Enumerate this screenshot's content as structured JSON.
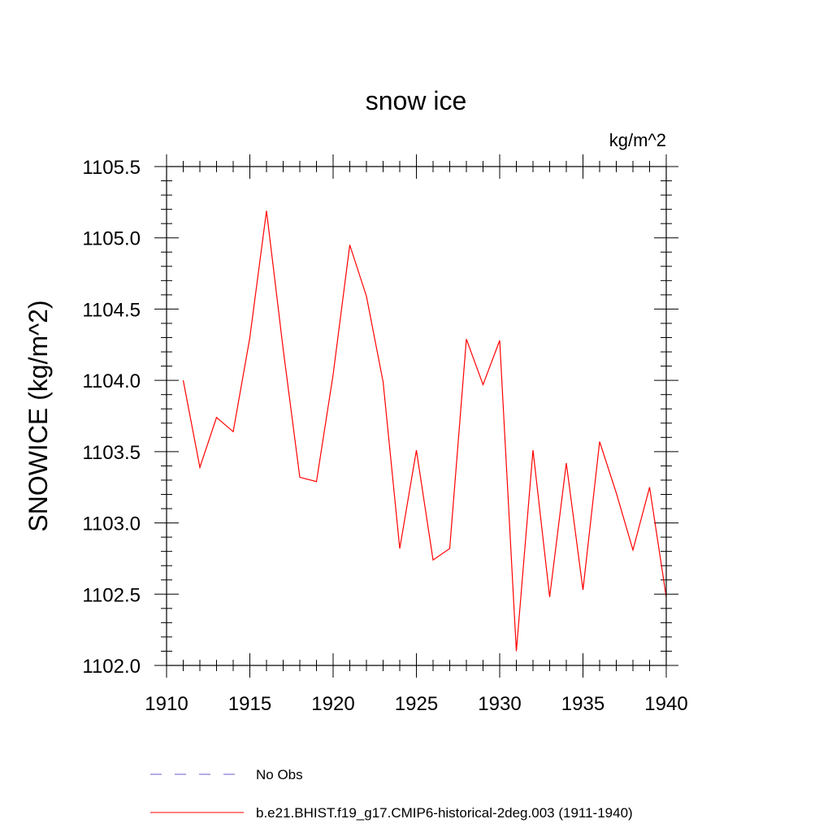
{
  "chart_data": {
    "type": "line",
    "title": "snow ice",
    "units_label": "kg/m^2",
    "ylabel": "SNOWICE  (kg/m^2)",
    "xlabel": "",
    "xlim": [
      1910,
      1940
    ],
    "ylim": [
      1102.0,
      1105.5
    ],
    "x_ticks": [
      1910,
      1915,
      1920,
      1925,
      1930,
      1935,
      1940
    ],
    "x_tick_labels": [
      "1910",
      "1915",
      "1920",
      "1925",
      "1930",
      "1935",
      "1940"
    ],
    "y_ticks": [
      1102.0,
      1102.5,
      1103.0,
      1103.5,
      1104.0,
      1104.5,
      1105.0,
      1105.5
    ],
    "y_tick_labels": [
      "1102.0",
      "1102.5",
      "1103.0",
      "1103.5",
      "1104.0",
      "1104.5",
      "1105.0",
      "1105.5"
    ],
    "grid": false,
    "legend_position": "bottom",
    "legend": [
      {
        "label": "No Obs",
        "color": "#6a5acd",
        "style": "dashed"
      },
      {
        "label": "b.e21.BHIST.f19_g17.CMIP6-historical-2deg.003 (1911-1940)",
        "color": "#ff0000",
        "style": "solid"
      }
    ],
    "series": [
      {
        "name": "b.e21.BHIST.f19_g17.CMIP6-historical-2deg.003 (1911-1940)",
        "color": "#ff0000",
        "x": [
          1911,
          1912,
          1913,
          1914,
          1915,
          1916,
          1917,
          1918,
          1919,
          1920,
          1921,
          1922,
          1923,
          1924,
          1925,
          1926,
          1927,
          1928,
          1929,
          1930,
          1931,
          1932,
          1933,
          1934,
          1935,
          1936,
          1937,
          1938,
          1939,
          1940
        ],
        "values": [
          1104.0,
          1103.39,
          1103.74,
          1103.64,
          1104.3,
          1105.19,
          1104.22,
          1103.32,
          1103.29,
          1104.04,
          1104.95,
          1104.59,
          1103.99,
          1102.82,
          1103.51,
          1102.74,
          1102.82,
          1104.29,
          1103.97,
          1104.28,
          1102.1,
          1103.51,
          1102.48,
          1103.42,
          1102.53,
          1103.57,
          1103.21,
          1102.81,
          1103.25,
          1102.48
        ]
      }
    ]
  }
}
